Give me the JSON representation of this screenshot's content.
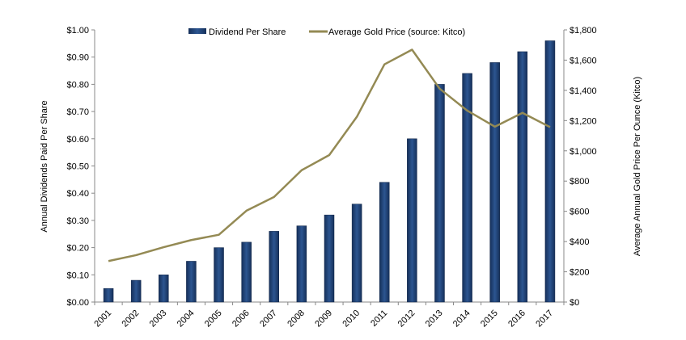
{
  "chart_data": {
    "type": "bar+line",
    "categories": [
      "2001",
      "2002",
      "2003",
      "2004",
      "2005",
      "2006",
      "2007",
      "2008",
      "2009",
      "2010",
      "2011",
      "2012",
      "2013",
      "2014",
      "2015",
      "2016",
      "2017"
    ],
    "series": [
      {
        "name": "Dividend Per Share",
        "type": "bar",
        "axis": "left",
        "color": "#1f3f73",
        "values": [
          0.05,
          0.08,
          0.1,
          0.15,
          0.2,
          0.22,
          0.26,
          0.28,
          0.32,
          0.36,
          0.44,
          0.6,
          0.8,
          0.84,
          0.88,
          0.92,
          0.96
        ]
      },
      {
        "name": "Average Gold Price (source: Kitco)",
        "type": "line",
        "axis": "right",
        "color": "#948a54",
        "values": [
          271,
          310,
          363,
          410,
          445,
          604,
          695,
          872,
          972,
          1225,
          1572,
          1669,
          1411,
          1266,
          1160,
          1251,
          1157
        ]
      }
    ],
    "ylabel": "Annual Dividends Paid Per Share",
    "y2label": "Average Annual Gold Price Per Ounce (Kitco)",
    "ylim": [
      0,
      1.0
    ],
    "y2lim": [
      0,
      1800
    ],
    "yticks": [
      "$0.00",
      "$0.10",
      "$0.20",
      "$0.30",
      "$0.40",
      "$0.50",
      "$0.60",
      "$0.70",
      "$0.80",
      "$0.90",
      "$1.00"
    ],
    "y2ticks": [
      "$0",
      "$200",
      "$400",
      "$600",
      "$800",
      "$1,000",
      "$1,200",
      "$1,400",
      "$1,600",
      "$1,800"
    ],
    "grid": false,
    "legend": "top-center"
  }
}
